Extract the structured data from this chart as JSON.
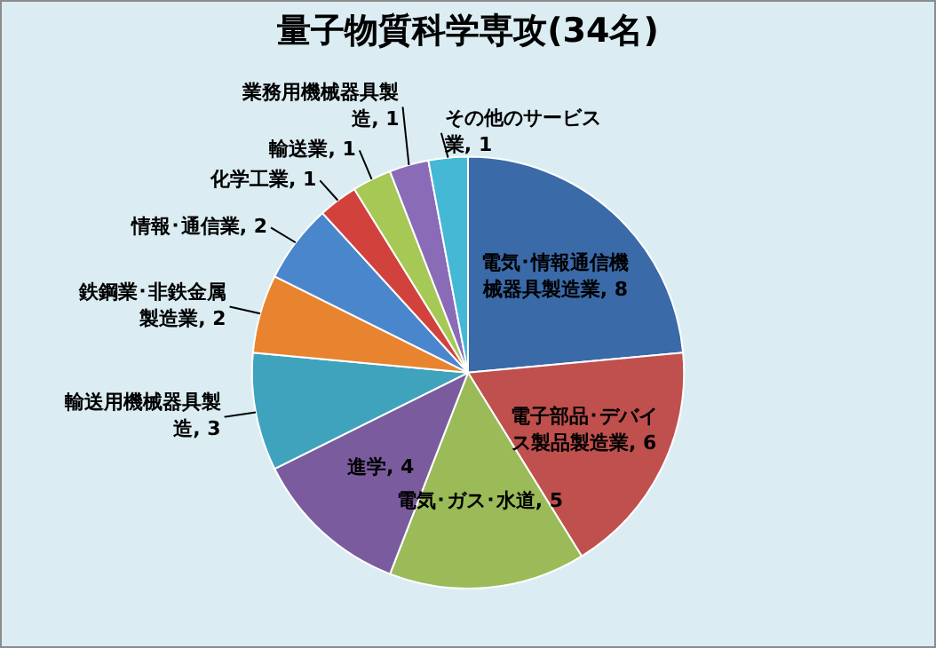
{
  "chart_data": {
    "type": "pie",
    "title": "量子物質科学専攻(34名)",
    "categories": [
      "電気･情報通信機械器具製造業",
      "電子部品･デバイス製品製造業",
      "電気･ガス･水道",
      "進学",
      "輸送用機械器具製造",
      "鉄鋼業･非鉄金属製造業",
      "情報･通信業",
      "化学工業",
      "輸送業",
      "業務用機械器具製造",
      "その他のサービス業"
    ],
    "values": [
      8,
      6,
      5,
      4,
      3,
      2,
      2,
      1,
      1,
      1,
      1
    ],
    "value_labels": [
      ", 8",
      ", 6",
      ", 5",
      ", 4",
      ", 3",
      ", 2",
      ", 2",
      ", 1",
      ", 1",
      ", 1",
      ", 1"
    ],
    "colors": [
      "#3a6aa8",
      "#c0504d",
      "#9bbb59",
      "#7a5c9e",
      "#3fa3bd",
      "#e8842f",
      "#4a86cc",
      "#d2423d",
      "#a6c855",
      "#8a6bb8",
      "#45b8d6"
    ]
  }
}
